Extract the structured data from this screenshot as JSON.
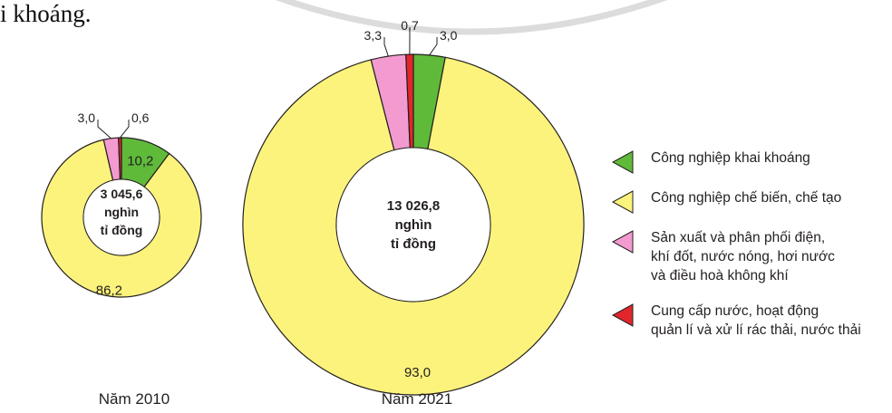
{
  "page_text": "i khoáng.",
  "colors": {
    "mining": "#5fba3a",
    "manufacturing": "#fbf37c",
    "energy": "#f39bd0",
    "water": "#e3262b",
    "outline": "#231f20"
  },
  "chart_data": {
    "type": "pie",
    "variant": "donut",
    "categories": [
      "Công nghiệp khai khoáng",
      "Công nghiệp chế biến, chế tạo",
      "Sản xuất và phân phối điện,\nkhí đốt, nước nóng, hơi nước\nvà điều hoà không khí",
      "Cung cấp nước, hoạt động\nquản lí và xử lí rác thải, nước thải"
    ],
    "legend_placement": "right",
    "charts": [
      {
        "caption": "Năm 2010",
        "center_lines": [
          "3 045,6",
          "nghìn",
          "tỉ đồng"
        ],
        "values": [
          10.2,
          86.2,
          3.0,
          0.6
        ],
        "value_labels": [
          "10,2",
          "86,2",
          "3,0",
          "0,6"
        ]
      },
      {
        "caption": "Năm 2021",
        "center_lines": [
          "13 026,8",
          "nghìn",
          "tỉ đồng"
        ],
        "values": [
          3.0,
          93.0,
          3.3,
          0.7
        ],
        "value_labels": [
          "3,0",
          "93,0",
          "3,3",
          "0,7"
        ]
      }
    ]
  }
}
